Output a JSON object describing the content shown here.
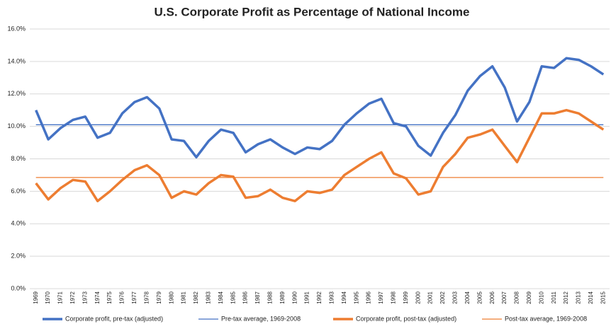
{
  "chart_data": {
    "type": "line",
    "title": "U.S. Corporate Profit as Percentage of National Income",
    "categories": [
      "1969",
      "1970",
      "1971",
      "1972",
      "1973",
      "1974",
      "1975",
      "1976",
      "1977",
      "1978",
      "1979",
      "1980",
      "1981",
      "1982",
      "1983",
      "1984",
      "1985",
      "1986",
      "1987",
      "1988",
      "1989",
      "1990",
      "1991",
      "1992",
      "1993",
      "1994",
      "1995",
      "1996",
      "1997",
      "1998",
      "1999",
      "2000",
      "2001",
      "2002",
      "2003",
      "2004",
      "2005",
      "2006",
      "2007",
      "2008",
      "2009",
      "2010",
      "2011",
      "2012",
      "2013",
      "2014",
      "2015"
    ],
    "series": [
      {
        "name": "Corporate profit, pre-tax (adjusted)",
        "color": "#4472c4",
        "values": [
          11.0,
          9.2,
          9.9,
          10.4,
          10.6,
          9.3,
          9.6,
          10.8,
          11.5,
          11.8,
          11.1,
          9.2,
          9.1,
          8.1,
          9.1,
          9.8,
          9.6,
          8.4,
          8.9,
          9.2,
          8.7,
          8.3,
          8.7,
          8.6,
          9.1,
          10.1,
          10.8,
          11.4,
          11.7,
          10.2,
          10.0,
          8.8,
          8.2,
          9.6,
          10.7,
          12.2,
          13.1,
          13.7,
          12.4,
          10.3,
          11.5,
          13.7,
          13.6,
          14.2,
          14.1,
          13.7,
          13.2
        ]
      },
      {
        "name": "Pre-tax average, 1969-2008",
        "color": "#4472c4",
        "values": [
          10.1,
          10.1,
          10.1,
          10.1,
          10.1,
          10.1,
          10.1,
          10.1,
          10.1,
          10.1,
          10.1,
          10.1,
          10.1,
          10.1,
          10.1,
          10.1,
          10.1,
          10.1,
          10.1,
          10.1,
          10.1,
          10.1,
          10.1,
          10.1,
          10.1,
          10.1,
          10.1,
          10.1,
          10.1,
          10.1,
          10.1,
          10.1,
          10.1,
          10.1,
          10.1,
          10.1,
          10.1,
          10.1,
          10.1,
          10.1,
          10.1,
          10.1,
          10.1,
          10.1,
          10.1,
          10.1,
          10.1
        ]
      },
      {
        "name": "Corporate profit, post-tax (adjusted)",
        "color": "#ed7d31",
        "values": [
          6.5,
          5.5,
          6.2,
          6.7,
          6.6,
          5.4,
          6.0,
          6.7,
          7.3,
          7.6,
          7.0,
          5.6,
          6.0,
          5.8,
          6.5,
          7.0,
          6.9,
          5.6,
          5.7,
          6.1,
          5.6,
          5.4,
          6.0,
          5.9,
          6.1,
          7.0,
          7.5,
          8.0,
          8.4,
          7.1,
          6.8,
          5.8,
          6.0,
          7.5,
          8.3,
          9.3,
          9.5,
          9.8,
          8.8,
          7.8,
          9.3,
          10.8,
          10.8,
          11.0,
          10.8,
          10.3,
          9.8
        ]
      },
      {
        "name": "Post-tax average, 1969-2008",
        "color": "#ed7d31",
        "values": [
          6.85,
          6.85,
          6.85,
          6.85,
          6.85,
          6.85,
          6.85,
          6.85,
          6.85,
          6.85,
          6.85,
          6.85,
          6.85,
          6.85,
          6.85,
          6.85,
          6.85,
          6.85,
          6.85,
          6.85,
          6.85,
          6.85,
          6.85,
          6.85,
          6.85,
          6.85,
          6.85,
          6.85,
          6.85,
          6.85,
          6.85,
          6.85,
          6.85,
          6.85,
          6.85,
          6.85,
          6.85,
          6.85,
          6.85,
          6.85,
          6.85,
          6.85,
          6.85,
          6.85,
          6.85,
          6.85,
          6.85
        ]
      }
    ],
    "ylim": [
      0,
      16
    ],
    "yticks": [
      {
        "value": 0,
        "label": "0.0%"
      },
      {
        "value": 2,
        "label": "2.0%"
      },
      {
        "value": 4,
        "label": "4.0%"
      },
      {
        "value": 6,
        "label": "6.0%"
      },
      {
        "value": 8,
        "label": "8.0%"
      },
      {
        "value": 10,
        "label": "10.0%"
      },
      {
        "value": 12,
        "label": "12.0%"
      },
      {
        "value": 14,
        "label": "14.0%"
      },
      {
        "value": 16,
        "label": "16.0%"
      }
    ],
    "grid": true,
    "legend": "bottom"
  }
}
